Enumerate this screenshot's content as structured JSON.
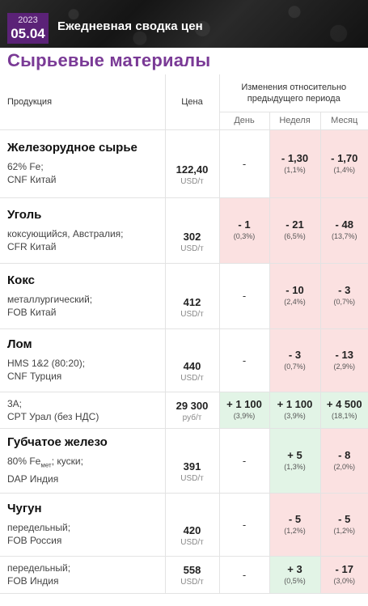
{
  "header": {
    "year": "2023",
    "date": "05.04",
    "title": "Ежедневная сводка цен"
  },
  "page_title": "Сырьевые материалы",
  "table": {
    "col_product": "Продукция",
    "col_price": "Цена",
    "col_changes": "Изменения относительно предыдущего периода",
    "col_day": "День",
    "col_week": "Неделя",
    "col_month": "Месяц"
  },
  "rows": [
    {
      "group": "Железорудное сырье",
      "desc1": "62% Fe;",
      "desc2": "CNF Китай",
      "price": "122,40",
      "unit": "USD/т",
      "day": "-",
      "day_pct": "",
      "week": "- 1,30",
      "week_pct": "(1,1%)",
      "month": "- 1,70",
      "month_pct": "(1,4%)"
    },
    {
      "group": "Уголь",
      "desc1": "коксующийся, Австралия;",
      "desc2": "CFR Китай",
      "price": "302",
      "unit": "USD/т",
      "day": "- 1",
      "day_pct": "(0,3%)",
      "week": "- 21",
      "week_pct": "(6,5%)",
      "month": "- 48",
      "month_pct": "(13,7%)"
    },
    {
      "group": "Кокс",
      "desc1": "металлургический;",
      "desc2": "FOB Китай",
      "price": "412",
      "unit": "USD/т",
      "day": "-",
      "day_pct": "",
      "week": "- 10",
      "week_pct": "(2,4%)",
      "month": "- 3",
      "month_pct": "(0,7%)"
    },
    {
      "group": "Лом",
      "desc1": "HMS 1&2 (80:20);",
      "desc2": "CNF Турция",
      "price": "440",
      "unit": "USD/т",
      "day": "-",
      "day_pct": "",
      "week": "- 3",
      "week_pct": "(0,7%)",
      "month": "- 13",
      "month_pct": "(2,9%)"
    },
    {
      "group": "",
      "desc1": "3А;",
      "desc2": "CPT Урал (без НДС)",
      "price": "29 300",
      "unit": "руб/т",
      "day": "+ 1 100",
      "day_pct": "(3,9%)",
      "week": "+ 1 100",
      "week_pct": "(3,9%)",
      "month": "+ 4 500",
      "month_pct": "(18,1%)"
    },
    {
      "group": "Губчатое железо",
      "desc1_a": "80% Fe",
      "desc1_sub": "мет",
      "desc1_b": "; куски;",
      "desc2": "DAP Индия",
      "price": "391",
      "unit": "USD/т",
      "day": "-",
      "day_pct": "",
      "week": "+ 5",
      "week_pct": "(1,3%)",
      "month": "- 8",
      "month_pct": "(2,0%)"
    },
    {
      "group": "Чугун",
      "desc1": "передельный;",
      "desc2": "FOB Россия",
      "price": "420",
      "unit": "USD/т",
      "day": "-",
      "day_pct": "",
      "week": "- 5",
      "week_pct": "(1,2%)",
      "month": "- 5",
      "month_pct": "(1,2%)"
    },
    {
      "group": "",
      "desc1": "передельный;",
      "desc2": "FOB Индия",
      "price": "558",
      "unit": "USD/т",
      "day": "-",
      "day_pct": "",
      "week": "+ 3",
      "week_pct": "(0,5%)",
      "month": "- 17",
      "month_pct": "(3,0%)"
    }
  ],
  "colors": {
    "accent": "#7a3a96",
    "badge": "#5b2277",
    "negative_bg": "#fbe1e1",
    "positive_bg": "#e2f4e6"
  }
}
